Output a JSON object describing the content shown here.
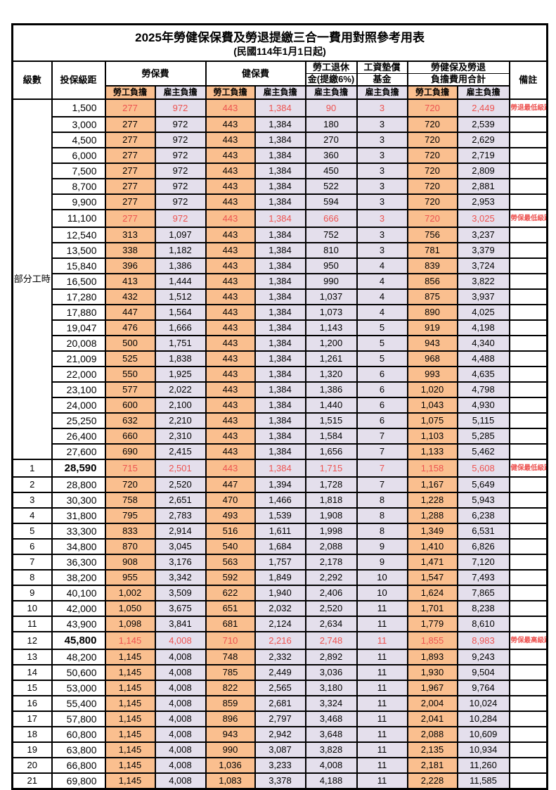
{
  "title": "2025年勞健保保費及勞退提繳三合一費用對照參考用表",
  "subtitle": "(民國114年1月1日起)",
  "header": {
    "level": "級數",
    "bracket": "投保級距",
    "labor_insurance": "勞保費",
    "health_insurance": "健保費",
    "pension_line1": "勞工退休",
    "pension_line2": "金(提繳6%)",
    "wage_fund_line1": "工資墊償",
    "wage_fund_line2": "基金",
    "total_line1": "勞健保及勞退",
    "total_line2": "負擔費用合計",
    "note": "備註",
    "employee_share": "勞工負擔",
    "employer_share": "雇主負擔"
  },
  "part_time_label": "部分工時",
  "part_time_rowspan": 23,
  "colors": {
    "employee_bg": "#FABF8F",
    "employer_bg": "#E4DFEC",
    "highlight_red": "#ED5350",
    "border": "#000000"
  },
  "column_share_pattern": [
    "emp",
    "er",
    "emp",
    "er",
    "er",
    "er",
    "emp",
    "er"
  ],
  "rows": [
    {
      "level": "",
      "bracket": "1,500",
      "values": [
        "277",
        "972",
        "443",
        "1,384",
        "90",
        "3",
        "720",
        "2,449"
      ],
      "note": "勞退最低級距",
      "highlight": true,
      "emph": false
    },
    {
      "level": "",
      "bracket": "3,000",
      "values": [
        "277",
        "972",
        "443",
        "1,384",
        "180",
        "3",
        "720",
        "2,539"
      ],
      "note": "",
      "highlight": false,
      "emph": false
    },
    {
      "level": "",
      "bracket": "4,500",
      "values": [
        "277",
        "972",
        "443",
        "1,384",
        "270",
        "3",
        "720",
        "2,629"
      ],
      "note": "",
      "highlight": false,
      "emph": false
    },
    {
      "level": "",
      "bracket": "6,000",
      "values": [
        "277",
        "972",
        "443",
        "1,384",
        "360",
        "3",
        "720",
        "2,719"
      ],
      "note": "",
      "highlight": false,
      "emph": false
    },
    {
      "level": "",
      "bracket": "7,500",
      "values": [
        "277",
        "972",
        "443",
        "1,384",
        "450",
        "3",
        "720",
        "2,809"
      ],
      "note": "",
      "highlight": false,
      "emph": false
    },
    {
      "level": "",
      "bracket": "8,700",
      "values": [
        "277",
        "972",
        "443",
        "1,384",
        "522",
        "3",
        "720",
        "2,881"
      ],
      "note": "",
      "highlight": false,
      "emph": false
    },
    {
      "level": "",
      "bracket": "9,900",
      "values": [
        "277",
        "972",
        "443",
        "1,384",
        "594",
        "3",
        "720",
        "2,953"
      ],
      "note": "",
      "highlight": false,
      "emph": false
    },
    {
      "level": "",
      "bracket": "11,100",
      "values": [
        "277",
        "972",
        "443",
        "1,384",
        "666",
        "3",
        "720",
        "3,025"
      ],
      "note": "勞保最低級距",
      "highlight": true,
      "emph": false
    },
    {
      "level": "",
      "bracket": "12,540",
      "values": [
        "313",
        "1,097",
        "443",
        "1,384",
        "752",
        "3",
        "756",
        "3,237"
      ],
      "note": "",
      "highlight": false,
      "emph": false
    },
    {
      "level": "",
      "bracket": "13,500",
      "values": [
        "338",
        "1,182",
        "443",
        "1,384",
        "810",
        "3",
        "781",
        "3,379"
      ],
      "note": "",
      "highlight": false,
      "emph": false
    },
    {
      "level": "",
      "bracket": "15,840",
      "values": [
        "396",
        "1,386",
        "443",
        "1,384",
        "950",
        "4",
        "839",
        "3,724"
      ],
      "note": "",
      "highlight": false,
      "emph": false
    },
    {
      "level": "",
      "bracket": "16,500",
      "values": [
        "413",
        "1,444",
        "443",
        "1,384",
        "990",
        "4",
        "856",
        "3,822"
      ],
      "note": "",
      "highlight": false,
      "emph": false
    },
    {
      "level": "",
      "bracket": "17,280",
      "values": [
        "432",
        "1,512",
        "443",
        "1,384",
        "1,037",
        "4",
        "875",
        "3,937"
      ],
      "note": "",
      "highlight": false,
      "emph": false
    },
    {
      "level": "",
      "bracket": "17,880",
      "values": [
        "447",
        "1,564",
        "443",
        "1,384",
        "1,073",
        "4",
        "890",
        "4,025"
      ],
      "note": "",
      "highlight": false,
      "emph": false
    },
    {
      "level": "",
      "bracket": "19,047",
      "values": [
        "476",
        "1,666",
        "443",
        "1,384",
        "1,143",
        "5",
        "919",
        "4,198"
      ],
      "note": "",
      "highlight": false,
      "emph": false
    },
    {
      "level": "",
      "bracket": "20,008",
      "values": [
        "500",
        "1,751",
        "443",
        "1,384",
        "1,200",
        "5",
        "943",
        "4,340"
      ],
      "note": "",
      "highlight": false,
      "emph": false
    },
    {
      "level": "",
      "bracket": "21,009",
      "values": [
        "525",
        "1,838",
        "443",
        "1,384",
        "1,261",
        "5",
        "968",
        "4,488"
      ],
      "note": "",
      "highlight": false,
      "emph": false
    },
    {
      "level": "",
      "bracket": "22,000",
      "values": [
        "550",
        "1,925",
        "443",
        "1,384",
        "1,320",
        "6",
        "993",
        "4,635"
      ],
      "note": "",
      "highlight": false,
      "emph": false
    },
    {
      "level": "",
      "bracket": "23,100",
      "values": [
        "577",
        "2,022",
        "443",
        "1,384",
        "1,386",
        "6",
        "1,020",
        "4,798"
      ],
      "note": "",
      "highlight": false,
      "emph": false
    },
    {
      "level": "",
      "bracket": "24,000",
      "values": [
        "600",
        "2,100",
        "443",
        "1,384",
        "1,440",
        "6",
        "1,043",
        "4,930"
      ],
      "note": "",
      "highlight": false,
      "emph": false
    },
    {
      "level": "",
      "bracket": "25,250",
      "values": [
        "632",
        "2,210",
        "443",
        "1,384",
        "1,515",
        "6",
        "1,075",
        "5,115"
      ],
      "note": "",
      "highlight": false,
      "emph": false
    },
    {
      "level": "",
      "bracket": "26,400",
      "values": [
        "660",
        "2,310",
        "443",
        "1,384",
        "1,584",
        "7",
        "1,103",
        "5,285"
      ],
      "note": "",
      "highlight": false,
      "emph": false
    },
    {
      "level": "",
      "bracket": "27,600",
      "values": [
        "690",
        "2,415",
        "443",
        "1,384",
        "1,656",
        "7",
        "1,133",
        "5,462"
      ],
      "note": "",
      "highlight": false,
      "emph": false
    },
    {
      "level": "1",
      "bracket": "28,590",
      "values": [
        "715",
        "2,501",
        "443",
        "1,384",
        "1,715",
        "7",
        "1,158",
        "5,608"
      ],
      "note": "健保最低級距",
      "highlight": true,
      "emph": true
    },
    {
      "level": "2",
      "bracket": "28,800",
      "values": [
        "720",
        "2,520",
        "447",
        "1,394",
        "1,728",
        "7",
        "1,167",
        "5,649"
      ],
      "note": "",
      "highlight": false,
      "emph": false
    },
    {
      "level": "3",
      "bracket": "30,300",
      "values": [
        "758",
        "2,651",
        "470",
        "1,466",
        "1,818",
        "8",
        "1,228",
        "5,943"
      ],
      "note": "",
      "highlight": false,
      "emph": false
    },
    {
      "level": "4",
      "bracket": "31,800",
      "values": [
        "795",
        "2,783",
        "493",
        "1,539",
        "1,908",
        "8",
        "1,288",
        "6,238"
      ],
      "note": "",
      "highlight": false,
      "emph": false
    },
    {
      "level": "5",
      "bracket": "33,300",
      "values": [
        "833",
        "2,914",
        "516",
        "1,611",
        "1,998",
        "8",
        "1,349",
        "6,531"
      ],
      "note": "",
      "highlight": false,
      "emph": false
    },
    {
      "level": "6",
      "bracket": "34,800",
      "values": [
        "870",
        "3,045",
        "540",
        "1,684",
        "2,088",
        "9",
        "1,410",
        "6,826"
      ],
      "note": "",
      "highlight": false,
      "emph": false
    },
    {
      "level": "7",
      "bracket": "36,300",
      "values": [
        "908",
        "3,176",
        "563",
        "1,757",
        "2,178",
        "9",
        "1,471",
        "7,120"
      ],
      "note": "",
      "highlight": false,
      "emph": false
    },
    {
      "level": "8",
      "bracket": "38,200",
      "values": [
        "955",
        "3,342",
        "592",
        "1,849",
        "2,292",
        "10",
        "1,547",
        "7,493"
      ],
      "note": "",
      "highlight": false,
      "emph": false
    },
    {
      "level": "9",
      "bracket": "40,100",
      "values": [
        "1,002",
        "3,509",
        "622",
        "1,940",
        "2,406",
        "10",
        "1,624",
        "7,865"
      ],
      "note": "",
      "highlight": false,
      "emph": false
    },
    {
      "level": "10",
      "bracket": "42,000",
      "values": [
        "1,050",
        "3,675",
        "651",
        "2,032",
        "2,520",
        "11",
        "1,701",
        "8,238"
      ],
      "note": "",
      "highlight": false,
      "emph": false
    },
    {
      "level": "11",
      "bracket": "43,900",
      "values": [
        "1,098",
        "3,841",
        "681",
        "2,124",
        "2,634",
        "11",
        "1,779",
        "8,610"
      ],
      "note": "",
      "highlight": false,
      "emph": false
    },
    {
      "level": "12",
      "bracket": "45,800",
      "values": [
        "1,145",
        "4,008",
        "710",
        "2,216",
        "2,748",
        "11",
        "1,855",
        "8,983"
      ],
      "note": "勞保最高級距",
      "highlight": true,
      "emph": true
    },
    {
      "level": "13",
      "bracket": "48,200",
      "values": [
        "1,145",
        "4,008",
        "748",
        "2,332",
        "2,892",
        "11",
        "1,893",
        "9,243"
      ],
      "note": "",
      "highlight": false,
      "emph": false
    },
    {
      "level": "14",
      "bracket": "50,600",
      "values": [
        "1,145",
        "4,008",
        "785",
        "2,449",
        "3,036",
        "11",
        "1,930",
        "9,504"
      ],
      "note": "",
      "highlight": false,
      "emph": false
    },
    {
      "level": "15",
      "bracket": "53,000",
      "values": [
        "1,145",
        "4,008",
        "822",
        "2,565",
        "3,180",
        "11",
        "1,967",
        "9,764"
      ],
      "note": "",
      "highlight": false,
      "emph": false
    },
    {
      "level": "16",
      "bracket": "55,400",
      "values": [
        "1,145",
        "4,008",
        "859",
        "2,681",
        "3,324",
        "11",
        "2,004",
        "10,024"
      ],
      "note": "",
      "highlight": false,
      "emph": false
    },
    {
      "level": "17",
      "bracket": "57,800",
      "values": [
        "1,145",
        "4,008",
        "896",
        "2,797",
        "3,468",
        "11",
        "2,041",
        "10,284"
      ],
      "note": "",
      "highlight": false,
      "emph": false
    },
    {
      "level": "18",
      "bracket": "60,800",
      "values": [
        "1,145",
        "4,008",
        "943",
        "2,942",
        "3,648",
        "11",
        "2,088",
        "10,609"
      ],
      "note": "",
      "highlight": false,
      "emph": false
    },
    {
      "level": "19",
      "bracket": "63,800",
      "values": [
        "1,145",
        "4,008",
        "990",
        "3,087",
        "3,828",
        "11",
        "2,135",
        "10,934"
      ],
      "note": "",
      "highlight": false,
      "emph": false
    },
    {
      "level": "20",
      "bracket": "66,800",
      "values": [
        "1,145",
        "4,008",
        "1,036",
        "3,233",
        "4,008",
        "11",
        "2,181",
        "11,260"
      ],
      "note": "",
      "highlight": false,
      "emph": false
    },
    {
      "level": "21",
      "bracket": "69,800",
      "values": [
        "1,145",
        "4,008",
        "1,083",
        "3,378",
        "4,188",
        "11",
        "2,228",
        "11,585"
      ],
      "note": "",
      "highlight": false,
      "emph": false
    }
  ]
}
